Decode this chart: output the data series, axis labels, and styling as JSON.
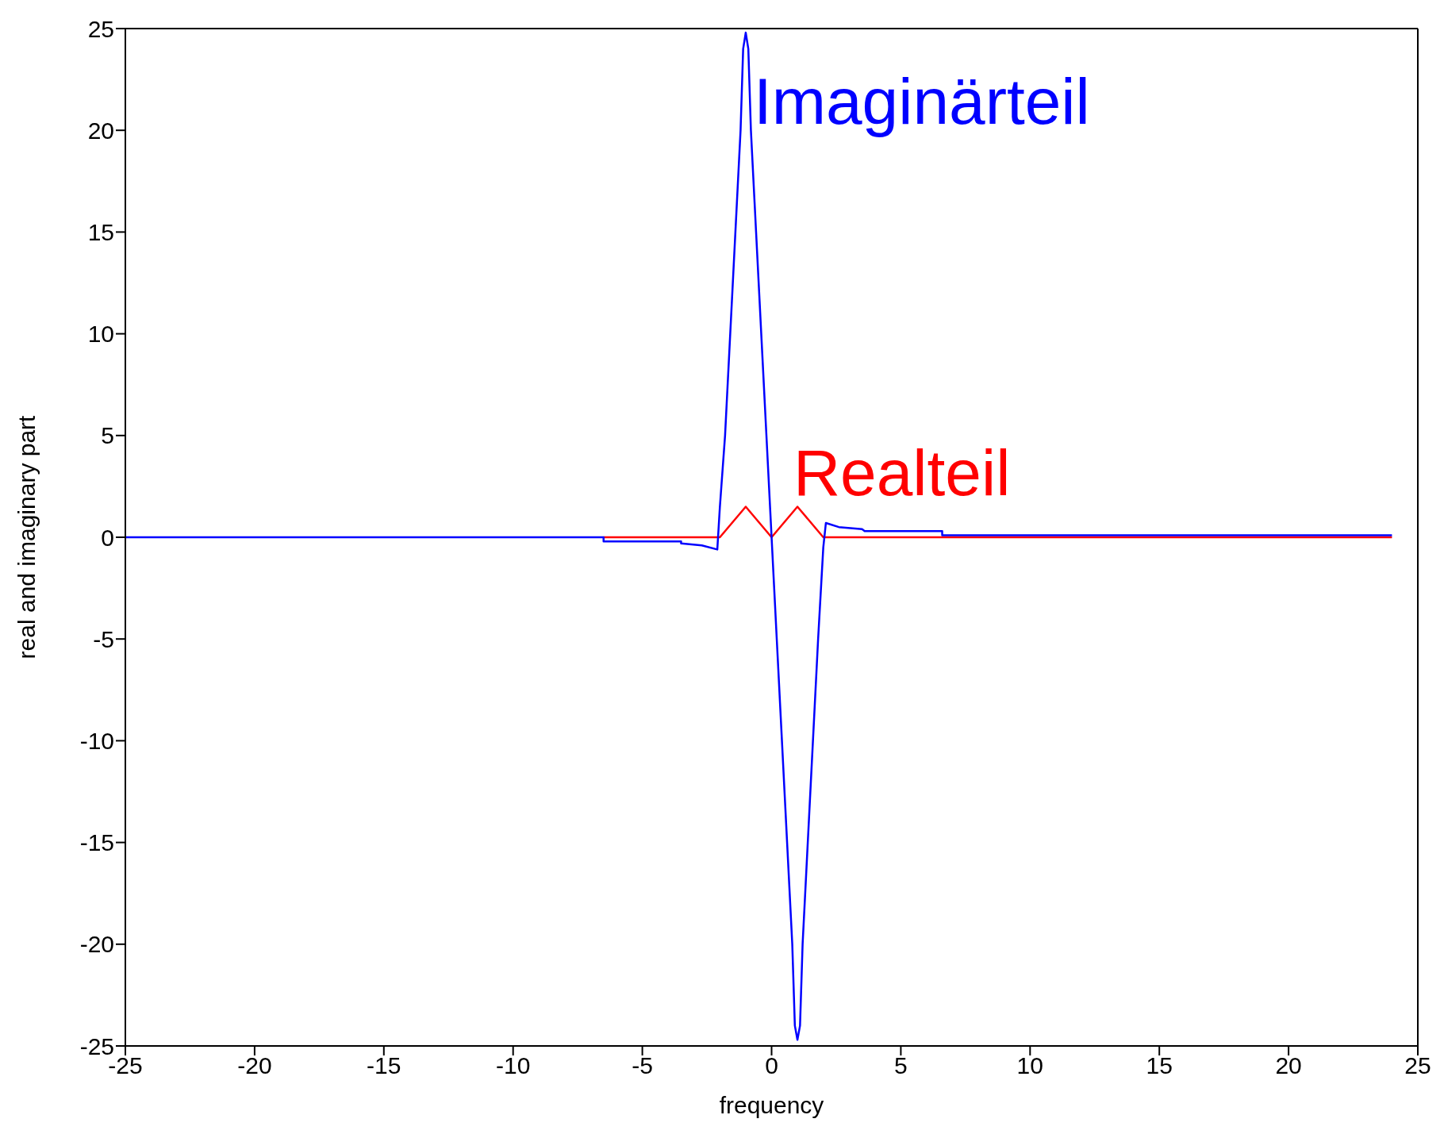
{
  "chart_data": {
    "type": "line",
    "xlabel": "frequency",
    "ylabel": "real and imaginary part",
    "xlim": [
      -25,
      25
    ],
    "xticks": [
      -25,
      -20,
      -15,
      -10,
      -5,
      0,
      5,
      10,
      15,
      20,
      25
    ],
    "ylim": [
      -25,
      25
    ],
    "yticks": [
      -25,
      -20,
      -15,
      -10,
      -5,
      0,
      5,
      10,
      15,
      20,
      25
    ],
    "grid": false,
    "legend": false,
    "marker": "none",
    "line_style": "solid",
    "series": [
      {
        "name": "Realteil",
        "color": "#ff0000",
        "x": [
          -6.5,
          -2,
          -1,
          0,
          1,
          2,
          24
        ],
        "values": [
          0,
          0,
          1.5,
          0,
          1.5,
          0,
          0
        ]
      },
      {
        "name": "Imaginärteil",
        "color": "#0000ff",
        "x": [
          -25,
          -6.5,
          -6.5,
          -3.5,
          -3.5,
          -2.7,
          -2.1,
          -2,
          -1.8,
          -1.6,
          -1.4,
          -1.2,
          -1.1,
          -1,
          -0.9,
          -0.8,
          -0.6,
          -0.4,
          -0.2,
          0,
          0.2,
          0.4,
          0.6,
          0.8,
          0.9,
          1,
          1.1,
          1.2,
          1.4,
          1.6,
          1.8,
          2,
          2.1,
          2.6,
          3.5,
          3.6,
          6.6,
          6.6,
          24
        ],
        "values": [
          0,
          0,
          -0.2,
          -0.2,
          -0.3,
          -0.4,
          -0.6,
          1.5,
          5,
          10,
          15,
          20,
          24,
          24.8,
          24,
          20,
          15,
          10,
          5,
          0,
          -5,
          -10,
          -15,
          -20,
          -24,
          -24.7,
          -24,
          -20,
          -15,
          -10,
          -5,
          -0.5,
          0.7,
          0.5,
          0.4,
          0.3,
          0.3,
          0.1,
          0.1
        ]
      }
    ]
  }
}
